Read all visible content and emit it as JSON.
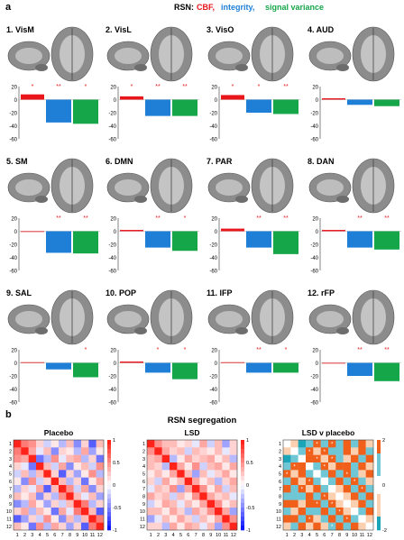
{
  "panel_a": {
    "label": "a",
    "header_prefix": "RSN:",
    "header_cbf": "CBF,",
    "header_integrity": "integrity,",
    "header_signal_variance": "signal variance",
    "colors": {
      "cbf": "#e8161b",
      "integrity": "#1f7fd6",
      "signal_variance": "#16a64a",
      "brain_blob": "#d93fd6"
    },
    "axis_ticks": [
      "20",
      "0",
      "-20",
      "-40",
      "-60"
    ]
  },
  "chart_data": [
    {
      "type": "bar",
      "title": "1. VisM",
      "categories": [
        "CBF",
        "integrity",
        "signal variance"
      ],
      "values": [
        8,
        -35,
        -37
      ],
      "significance": [
        "*",
        "**",
        "*"
      ],
      "ylim": [
        -60,
        20
      ]
    },
    {
      "type": "bar",
      "title": "2. VisL",
      "categories": [
        "CBF",
        "integrity",
        "signal variance"
      ],
      "values": [
        5,
        -25,
        -25
      ],
      "significance": [
        "*",
        "**",
        "**"
      ],
      "ylim": [
        -60,
        20
      ]
    },
    {
      "type": "bar",
      "title": "3. VisO",
      "categories": [
        "CBF",
        "integrity",
        "signal variance"
      ],
      "values": [
        7,
        -20,
        -22
      ],
      "significance": [
        "*",
        "*",
        "**"
      ],
      "ylim": [
        -60,
        20
      ]
    },
    {
      "type": "bar",
      "title": "4. AUD",
      "categories": [
        "CBF",
        "integrity",
        "signal variance"
      ],
      "values": [
        2,
        -8,
        -10
      ],
      "significance": [
        "",
        "",
        ""
      ],
      "ylim": [
        -60,
        20
      ]
    },
    {
      "type": "bar",
      "title": "5. SM",
      "categories": [
        "CBF",
        "integrity",
        "signal variance"
      ],
      "values": [
        -1,
        -33,
        -34
      ],
      "significance": [
        "",
        "**",
        "**"
      ],
      "ylim": [
        -60,
        20
      ]
    },
    {
      "type": "bar",
      "title": "6. DMN",
      "categories": [
        "CBF",
        "integrity",
        "signal variance"
      ],
      "values": [
        2,
        -25,
        -30
      ],
      "significance": [
        "",
        "**",
        "*"
      ],
      "ylim": [
        -60,
        20
      ]
    },
    {
      "type": "bar",
      "title": "7. PAR",
      "categories": [
        "CBF",
        "integrity",
        "signal variance"
      ],
      "values": [
        4,
        -25,
        -35
      ],
      "significance": [
        "",
        "**",
        "**"
      ],
      "ylim": [
        -60,
        20
      ]
    },
    {
      "type": "bar",
      "title": "8. DAN",
      "categories": [
        "CBF",
        "integrity",
        "signal variance"
      ],
      "values": [
        2,
        -25,
        -28
      ],
      "significance": [
        "",
        "**",
        "**"
      ],
      "ylim": [
        -60,
        20
      ]
    },
    {
      "type": "bar",
      "title": "9. SAL",
      "categories": [
        "CBF",
        "integrity",
        "signal variance"
      ],
      "values": [
        1,
        -10,
        -22
      ],
      "significance": [
        "",
        "",
        "*"
      ],
      "ylim": [
        -60,
        20
      ]
    },
    {
      "type": "bar",
      "title": "10. POP",
      "categories": [
        "CBF",
        "integrity",
        "signal variance"
      ],
      "values": [
        2,
        -15,
        -25
      ],
      "significance": [
        "",
        "*",
        "*"
      ],
      "ylim": [
        -60,
        20
      ]
    },
    {
      "type": "bar",
      "title": "11. lFP",
      "categories": [
        "CBF",
        "integrity",
        "signal variance"
      ],
      "values": [
        1,
        -15,
        -15
      ],
      "significance": [
        "",
        "**",
        "*"
      ],
      "ylim": [
        -60,
        20
      ]
    },
    {
      "type": "bar",
      "title": "12. rFP",
      "categories": [
        "CBF",
        "integrity",
        "signal variance"
      ],
      "values": [
        0,
        -20,
        -28
      ],
      "significance": [
        "",
        "**",
        "**"
      ],
      "ylim": [
        -60,
        20
      ]
    },
    {
      "type": "heatmap",
      "title": "Placebo",
      "x": [
        "1",
        "2",
        "3",
        "4",
        "5",
        "6",
        "7",
        "8",
        "9",
        "10",
        "11",
        "12"
      ],
      "y": [
        "1",
        "2",
        "3",
        "4",
        "5",
        "6",
        "7",
        "8",
        "9",
        "10",
        "11",
        "12"
      ],
      "colorbar_ticks": [
        "1",
        "0.5",
        "0",
        "-0.5",
        "-1"
      ],
      "values": [
        [
          1,
          0.6,
          0.5,
          0.2,
          -0.2,
          0.1,
          -0.3,
          0.3,
          -0.5,
          0.2,
          -0.7,
          0.3
        ],
        [
          0.6,
          1,
          0.4,
          -0.1,
          0.3,
          -0.5,
          0.2,
          0.1,
          -0.3,
          0.4,
          -0.4,
          0.1
        ],
        [
          0.5,
          0.4,
          1,
          -0.6,
          -0.3,
          0.5,
          -0.1,
          0.3,
          0.4,
          -0.3,
          0.2,
          -0.6
        ],
        [
          0.2,
          -0.1,
          -0.6,
          1,
          0.3,
          -0.2,
          0.4,
          -0.5,
          0.1,
          0.3,
          -0.2,
          0.5
        ],
        [
          -0.2,
          0.3,
          -0.3,
          0.3,
          1,
          0.2,
          -0.7,
          0.2,
          -0.4,
          0.1,
          0.5,
          -0.3
        ],
        [
          0.1,
          -0.5,
          0.5,
          -0.2,
          0.2,
          1,
          0.3,
          -0.3,
          0.2,
          -0.6,
          0.1,
          0.4
        ],
        [
          -0.3,
          0.2,
          -0.1,
          0.4,
          -0.7,
          0.3,
          1,
          0.5,
          -0.2,
          0.4,
          -0.5,
          0.2
        ],
        [
          0.3,
          0.1,
          0.3,
          -0.5,
          0.2,
          -0.3,
          0.5,
          1,
          0.3,
          -0.1,
          0.3,
          -0.4
        ],
        [
          -0.5,
          -0.3,
          0.4,
          0.1,
          -0.4,
          0.2,
          -0.2,
          0.3,
          1,
          0.6,
          -0.3,
          0.2
        ],
        [
          0.2,
          0.4,
          -0.3,
          0.3,
          0.1,
          -0.6,
          0.4,
          -0.1,
          0.6,
          1,
          0.3,
          -0.7
        ],
        [
          -0.7,
          -0.4,
          0.2,
          -0.2,
          0.5,
          0.1,
          -0.5,
          0.3,
          -0.3,
          0.3,
          1,
          0.6
        ],
        [
          0.3,
          0.1,
          -0.6,
          0.5,
          -0.3,
          0.4,
          0.2,
          -0.4,
          0.2,
          -0.7,
          0.6,
          1
        ]
      ]
    },
    {
      "type": "heatmap",
      "title": "LSD",
      "x": [
        "1",
        "2",
        "3",
        "4",
        "5",
        "6",
        "7",
        "8",
        "9",
        "10",
        "11",
        "12"
      ],
      "y": [
        "1",
        "2",
        "3",
        "4",
        "5",
        "6",
        "7",
        "8",
        "9",
        "10",
        "11",
        "12"
      ],
      "colorbar_ticks": [
        "1",
        "0.5",
        "0",
        "-0.5",
        "-1"
      ],
      "values": [
        [
          1,
          0.5,
          0.3,
          0.3,
          0.1,
          0.2,
          -0.1,
          0.4,
          -0.2,
          0.3,
          -0.4,
          0.2
        ],
        [
          0.5,
          1,
          0.4,
          0.2,
          0.3,
          -0.2,
          0.3,
          0.2,
          0.1,
          0.3,
          -0.1,
          0.2
        ],
        [
          0.3,
          0.4,
          1,
          -0.3,
          0.1,
          0.4,
          0.2,
          0.3,
          0.4,
          0.1,
          0.3,
          -0.3
        ],
        [
          0.3,
          0.2,
          -0.3,
          1,
          0.4,
          0.1,
          0.5,
          -0.2,
          0.3,
          0.4,
          0.1,
          0.4
        ],
        [
          0.1,
          0.3,
          0.1,
          0.4,
          1,
          0.3,
          -0.4,
          0.3,
          -0.1,
          0.2,
          0.4,
          0.1
        ],
        [
          0.2,
          -0.2,
          0.4,
          0.1,
          0.3,
          1,
          0.4,
          0.1,
          0.3,
          -0.3,
          0.2,
          0.4
        ],
        [
          -0.1,
          0.3,
          0.2,
          0.5,
          -0.4,
          0.4,
          1,
          0.5,
          0.1,
          0.4,
          -0.2,
          0.3
        ],
        [
          0.4,
          0.2,
          0.3,
          -0.2,
          0.3,
          0.1,
          0.5,
          1,
          0.4,
          0.2,
          0.3,
          -0.1
        ],
        [
          -0.2,
          0.1,
          0.4,
          0.3,
          -0.1,
          0.3,
          0.1,
          0.4,
          1,
          0.5,
          0.1,
          0.3
        ],
        [
          0.3,
          0.3,
          0.1,
          0.4,
          0.2,
          -0.3,
          0.4,
          0.2,
          0.5,
          1,
          0.4,
          -0.4
        ],
        [
          -0.4,
          -0.1,
          0.3,
          0.1,
          0.4,
          0.2,
          -0.2,
          0.3,
          0.1,
          0.4,
          1,
          0.5
        ],
        [
          0.2,
          0.2,
          -0.3,
          0.4,
          0.1,
          0.4,
          0.3,
          -0.1,
          0.3,
          -0.4,
          0.5,
          1
        ]
      ]
    },
    {
      "type": "heatmap",
      "title": "LSD v placebo",
      "x": [
        "1",
        "2",
        "3",
        "4",
        "5",
        "6",
        "7",
        "8",
        "9",
        "10",
        "11",
        "12"
      ],
      "y": [
        "1",
        "2",
        "3",
        "4",
        "5",
        "6",
        "7",
        "8",
        "9",
        "10",
        "11",
        "12"
      ],
      "colorbar_ticks": [
        "2",
        "0",
        "-2"
      ],
      "values": [
        [
          0,
          -1,
          -2,
          1,
          2,
          1,
          2,
          1,
          2,
          1,
          2,
          -1
        ],
        [
          -1,
          0,
          1,
          2,
          -1,
          2,
          1,
          1,
          2,
          -1,
          2,
          1
        ],
        [
          -2,
          1,
          0,
          2,
          2,
          -1,
          2,
          1,
          -1,
          2,
          1,
          2
        ],
        [
          1,
          2,
          2,
          0,
          1,
          2,
          -1,
          2,
          2,
          1,
          2,
          -1
        ],
        [
          2,
          -1,
          2,
          1,
          0,
          1,
          2,
          1,
          2,
          1,
          -1,
          2
        ],
        [
          1,
          2,
          -1,
          2,
          1,
          0,
          1,
          2,
          1,
          2,
          1,
          -1
        ],
        [
          2,
          1,
          2,
          -1,
          2,
          1,
          0,
          -1,
          2,
          1,
          2,
          1
        ],
        [
          1,
          1,
          1,
          2,
          1,
          2,
          -1,
          0,
          -1,
          2,
          1,
          2
        ],
        [
          2,
          2,
          -1,
          2,
          2,
          1,
          2,
          -1,
          0,
          -1,
          2,
          1
        ],
        [
          1,
          -1,
          2,
          1,
          1,
          2,
          1,
          2,
          -1,
          0,
          1,
          2
        ],
        [
          2,
          2,
          1,
          2,
          -1,
          1,
          2,
          1,
          2,
          1,
          0,
          -1
        ],
        [
          -1,
          1,
          2,
          -1,
          2,
          -1,
          1,
          2,
          1,
          2,
          -1,
          0
        ]
      ],
      "marked_cells": [
        [
          0,
          4
        ],
        [
          0,
          6
        ],
        [
          1,
          3
        ],
        [
          1,
          5
        ],
        [
          2,
          4
        ],
        [
          2,
          6
        ],
        [
          3,
          1
        ],
        [
          3,
          5
        ],
        [
          4,
          0
        ],
        [
          4,
          8
        ],
        [
          5,
          3
        ],
        [
          5,
          9
        ],
        [
          6,
          2
        ],
        [
          6,
          10
        ],
        [
          7,
          5
        ],
        [
          8,
          4
        ],
        [
          8,
          6
        ],
        [
          9,
          7
        ],
        [
          10,
          3
        ],
        [
          10,
          8
        ],
        [
          11,
          6
        ]
      ]
    }
  ],
  "panel_b": {
    "label": "b",
    "title": "RSN segregation"
  }
}
